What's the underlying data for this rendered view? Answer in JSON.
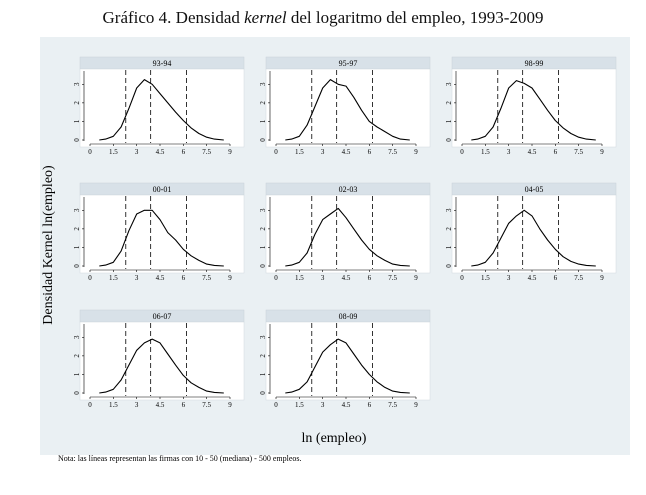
{
  "title": {
    "prefix": "Gráfico 4. Densidad ",
    "italic": "kernel",
    "suffix": " del logaritmo del empleo, 1993-2009"
  },
  "ylabel": "Densidad Kernel ln(empleo)",
  "xlabel": "ln (empleo)",
  "note": "Nota: las líneas representan las firmas con 10 - 50 (mediana) - 500 empleos.",
  "colors": {
    "panel_bg": "#ffffff",
    "strip_bg": "#d8e1e8",
    "outer_bg": "#eaf0f3",
    "line": "#000000"
  },
  "chart_data": {
    "type": "line",
    "title": "Gráfico 4. Densidad kernel del logaritmo del empleo, 1993-2009",
    "xlabel": "ln (empleo)",
    "ylabel": "Densidad Kernel ln(empleo)",
    "xlim": [
      0,
      9
    ],
    "ylim": [
      0,
      3.5
    ],
    "x_ticks": [
      "0",
      "1.5",
      "3",
      "4.5",
      "6",
      "7.5",
      "9"
    ],
    "y_ticks": [
      "0",
      "1",
      "2",
      "3"
    ],
    "reference_lines": [
      2.3,
      3.9,
      6.2
    ],
    "x": [
      0.6,
      1.0,
      1.5,
      2.0,
      2.5,
      3.0,
      3.5,
      4.0,
      4.5,
      5.0,
      5.5,
      6.0,
      6.5,
      7.0,
      7.5,
      8.0,
      8.6
    ],
    "series": [
      {
        "name": "93-94",
        "values": [
          0.0,
          0.05,
          0.2,
          0.7,
          1.7,
          2.8,
          3.25,
          3.0,
          2.5,
          2.0,
          1.5,
          1.05,
          0.65,
          0.35,
          0.15,
          0.05,
          0.0
        ]
      },
      {
        "name": "95-97",
        "values": [
          0.0,
          0.05,
          0.2,
          0.8,
          1.8,
          2.8,
          3.25,
          3.0,
          2.9,
          2.3,
          1.6,
          1.0,
          0.7,
          0.45,
          0.2,
          0.05,
          0.0
        ]
      },
      {
        "name": "98-99",
        "values": [
          0.0,
          0.05,
          0.2,
          0.7,
          1.7,
          2.8,
          3.2,
          3.05,
          2.8,
          2.2,
          1.6,
          1.05,
          0.65,
          0.35,
          0.15,
          0.05,
          0.0
        ]
      },
      {
        "name": "00-01",
        "values": [
          0.0,
          0.05,
          0.2,
          0.8,
          1.9,
          2.8,
          3.0,
          3.0,
          2.5,
          1.8,
          1.4,
          0.9,
          0.55,
          0.3,
          0.1,
          0.03,
          0.0
        ]
      },
      {
        "name": "02-03",
        "values": [
          0.0,
          0.05,
          0.2,
          0.7,
          1.7,
          2.5,
          2.8,
          3.1,
          2.6,
          2.0,
          1.4,
          0.9,
          0.55,
          0.3,
          0.1,
          0.03,
          0.0
        ]
      },
      {
        "name": "04-05",
        "values": [
          0.0,
          0.05,
          0.2,
          0.7,
          1.5,
          2.3,
          2.7,
          3.0,
          2.7,
          2.0,
          1.4,
          0.9,
          0.5,
          0.25,
          0.1,
          0.03,
          0.0
        ]
      },
      {
        "name": "06-07",
        "values": [
          0.0,
          0.05,
          0.2,
          0.7,
          1.5,
          2.3,
          2.7,
          2.9,
          2.7,
          2.1,
          1.5,
          0.95,
          0.55,
          0.3,
          0.1,
          0.03,
          0.0
        ]
      },
      {
        "name": "08-09",
        "values": [
          0.0,
          0.05,
          0.2,
          0.6,
          1.4,
          2.2,
          2.6,
          2.9,
          2.7,
          2.1,
          1.5,
          1.0,
          0.6,
          0.3,
          0.1,
          0.03,
          0.0
        ]
      }
    ]
  }
}
